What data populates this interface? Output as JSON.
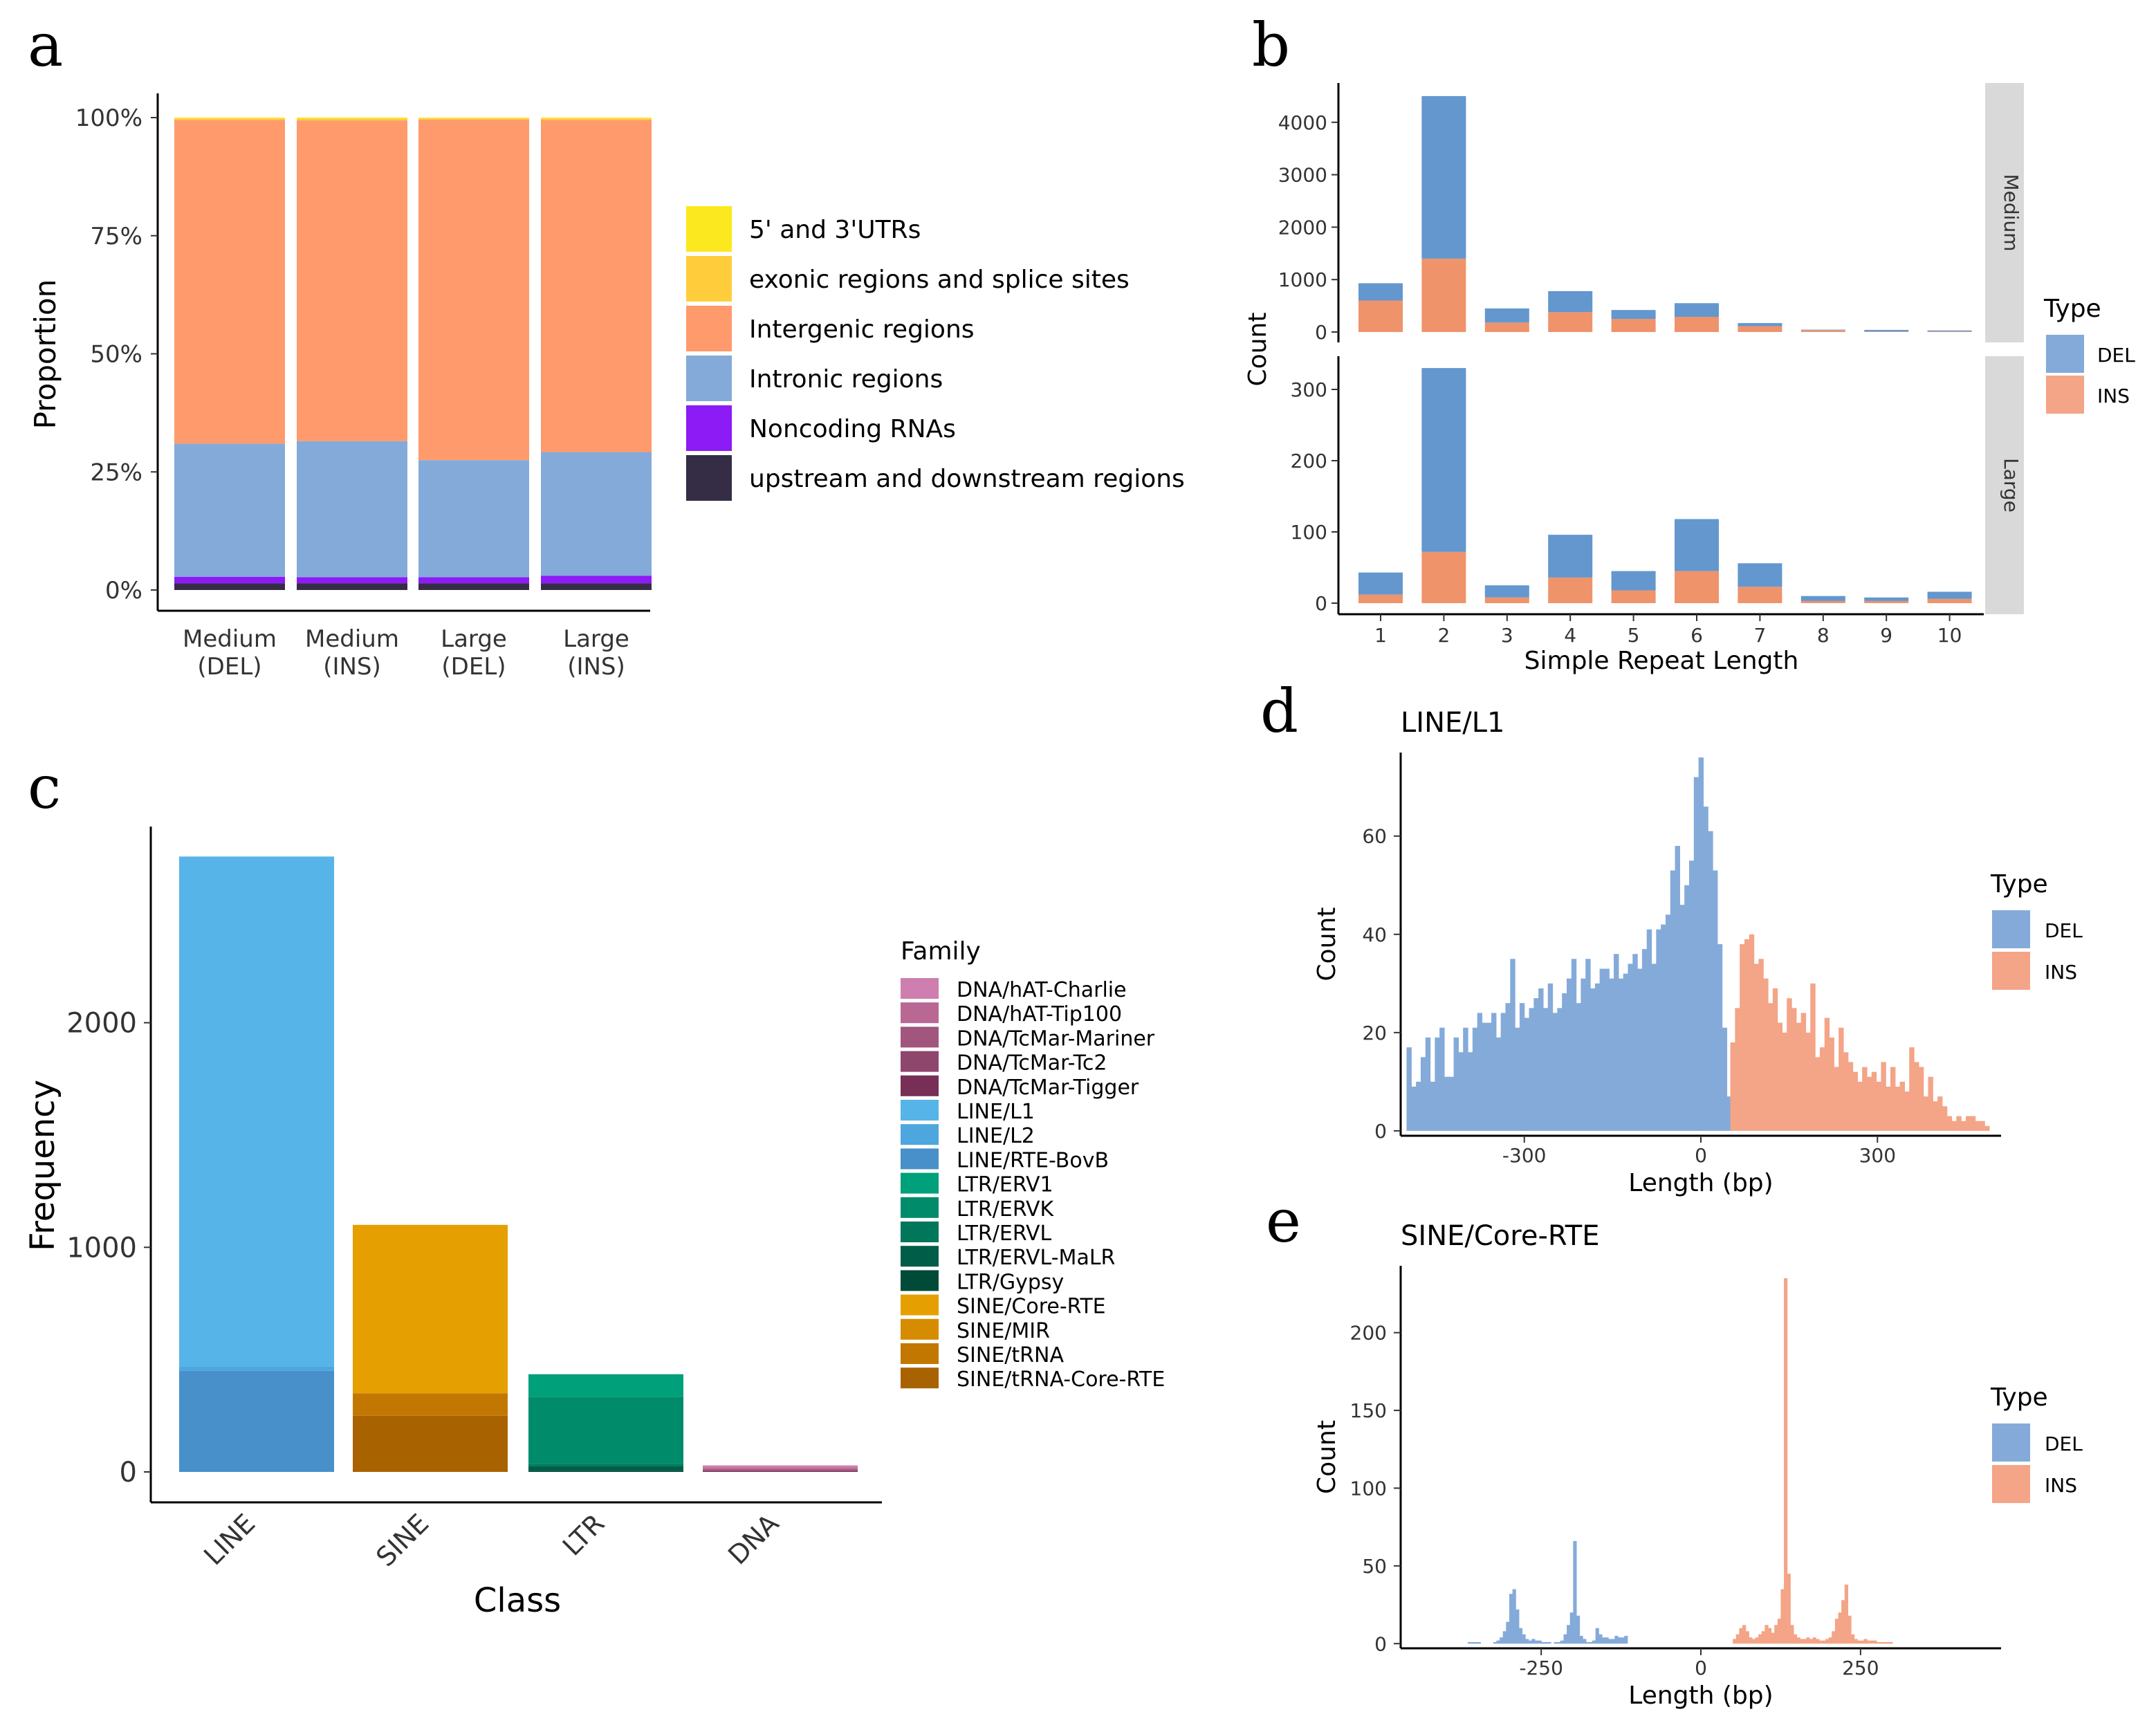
{
  "chart_data": [
    {
      "panel": "a",
      "type": "bar",
      "stacked": true,
      "categories": [
        "Medium\n(DEL)",
        "Medium\n(INS)",
        "Large\n(DEL)",
        "Large\n(INS)"
      ],
      "ylabel": "Proportion",
      "ylim": [
        0,
        1
      ],
      "yticks": [
        "0%",
        "25%",
        "50%",
        "75%",
        "100%"
      ],
      "stack_order_bottom_to_top": [
        "upstream and downstream regions",
        "Noncoding RNAs",
        "Intronic regions",
        "Intergenic regions",
        "exonic regions and splice sites",
        "5' and 3'UTRs"
      ],
      "series": [
        {
          "name": "5' and 3'UTRs",
          "color": "#FCE81E",
          "values": [
            0.002,
            0.002,
            0.002,
            0.002
          ]
        },
        {
          "name": "exonic regions and splice sites",
          "color": "#FFCD3C",
          "values": [
            0.003,
            0.004,
            0.002,
            0.003
          ]
        },
        {
          "name": "Intergenic regions",
          "color": "#FF9A6C",
          "values": [
            0.685,
            0.679,
            0.721,
            0.703
          ]
        },
        {
          "name": "Intronic regions",
          "color": "#84AAD9",
          "values": [
            0.282,
            0.288,
            0.248,
            0.262
          ]
        },
        {
          "name": "Noncoding RNAs",
          "color": "#8C1BF5",
          "values": [
            0.014,
            0.013,
            0.013,
            0.016
          ]
        },
        {
          "name": "upstream and downstream regions",
          "color": "#352D45",
          "values": [
            0.014,
            0.014,
            0.014,
            0.014
          ]
        }
      ]
    },
    {
      "panel": "b",
      "type": "bar",
      "stacked": true,
      "xlabel": "Simple Repeat Length",
      "ylabel": "Count",
      "legend_title": "Type",
      "categories": [
        "1",
        "2",
        "3",
        "4",
        "5",
        "6",
        "7",
        "8",
        "9",
        "10"
      ],
      "colors": {
        "DEL": "#6397CE",
        "INS": "#EF936B"
      },
      "legend_colors": {
        "DEL": "#84AAD9",
        "INS": "#F4A487"
      },
      "facets": [
        {
          "name": "Medium",
          "ylim": [
            0,
            4650
          ],
          "yticks": [
            "0",
            "1000",
            "2000",
            "3000",
            "4000"
          ],
          "series": [
            {
              "name": "INS",
              "values": [
                600,
                1400,
                180,
                380,
                250,
                290,
                110,
                35,
                10,
                10
              ]
            },
            {
              "name": "DEL",
              "values": [
                330,
                3100,
                270,
                400,
                170,
                260,
                60,
                10,
                30,
                20
              ]
            }
          ]
        },
        {
          "name": "Large",
          "ylim": [
            0,
            340
          ],
          "yticks": [
            "0",
            "100",
            "200",
            "300"
          ],
          "series": [
            {
              "name": "INS",
              "values": [
                12,
                72,
                8,
                36,
                18,
                45,
                23,
                3,
                3,
                6
              ]
            },
            {
              "name": "DEL",
              "values": [
                31,
                258,
                17,
                60,
                27,
                73,
                33,
                7,
                5,
                10
              ]
            }
          ]
        }
      ]
    },
    {
      "panel": "c",
      "type": "bar",
      "stacked": true,
      "xlabel": "Class",
      "ylabel": "Frequency",
      "legend_title": "Family",
      "categories": [
        "LINE",
        "SINE",
        "LTR",
        "DNA"
      ],
      "ylim": [
        0,
        2880
      ],
      "yticks": [
        "0",
        "1000",
        "2000"
      ],
      "families": [
        {
          "name": "DNA/hAT-Charlie",
          "color": "#CF7EB0"
        },
        {
          "name": "DNA/hAT-Tip100",
          "color": "#B96893"
        },
        {
          "name": "DNA/TcMar-Mariner",
          "color": "#A2557D"
        },
        {
          "name": "DNA/TcMar-Tc2",
          "color": "#8E466C"
        },
        {
          "name": "DNA/TcMar-Tigger",
          "color": "#782F56"
        },
        {
          "name": "LINE/L1",
          "color": "#56B4E9"
        },
        {
          "name": "LINE/L2",
          "color": "#4EA6DE"
        },
        {
          "name": "LINE/RTE-BovB",
          "color": "#4790C9"
        },
        {
          "name": "LTR/ERV1",
          "color": "#00A07A"
        },
        {
          "name": "LTR/ERVK",
          "color": "#008C6A"
        },
        {
          "name": "LTR/ERVL",
          "color": "#00765A"
        },
        {
          "name": "LTR/ERVL-MaLR",
          "color": "#005E48"
        },
        {
          "name": "LTR/Gypsy",
          "color": "#004A38"
        },
        {
          "name": "SINE/Core-RTE",
          "color": "#E69F00"
        },
        {
          "name": "SINE/MIR",
          "color": "#D68C00"
        },
        {
          "name": "SINE/tRNA",
          "color": "#C27800"
        },
        {
          "name": "SINE/tRNA-Core-RTE",
          "color": "#A86300"
        }
      ],
      "bars": [
        {
          "category": "LINE",
          "segments": [
            {
              "family": "LINE/RTE-BovB",
              "value": 450
            },
            {
              "family": "LINE/L2",
              "value": 20
            },
            {
              "family": "LINE/L1",
              "value": 2270
            }
          ]
        },
        {
          "category": "SINE",
          "segments": [
            {
              "family": "SINE/tRNA-Core-RTE",
              "value": 250
            },
            {
              "family": "SINE/tRNA",
              "value": 100
            },
            {
              "family": "SINE/Core-RTE",
              "value": 750
            }
          ]
        },
        {
          "category": "LTR",
          "segments": [
            {
              "family": "LTR/Gypsy",
              "value": 5
            },
            {
              "family": "LTR/ERVL-MaLR",
              "value": 20
            },
            {
              "family": "LTR/ERVL",
              "value": 10
            },
            {
              "family": "LTR/ERVK",
              "value": 300
            },
            {
              "family": "LTR/ERV1",
              "value": 100
            }
          ]
        },
        {
          "category": "DNA",
          "segments": [
            {
              "family": "DNA/TcMar-Tigger",
              "value": 4
            },
            {
              "family": "DNA/TcMar-Tc2",
              "value": 4
            },
            {
              "family": "DNA/TcMar-Mariner",
              "value": 5
            },
            {
              "family": "DNA/hAT-Tip100",
              "value": 8
            },
            {
              "family": "DNA/hAT-Charlie",
              "value": 8
            }
          ]
        }
      ]
    },
    {
      "panel": "d",
      "type": "bar",
      "subtype": "histogram",
      "title": "LINE/L1",
      "xlabel": "Length (bp)",
      "ylabel": "Count",
      "legend_title": "Type",
      "xlim": [
        -510,
        510
      ],
      "ylim": [
        -1,
        77
      ],
      "xticks": [
        "-300",
        "0",
        "300"
      ],
      "yticks": [
        "0",
        "20",
        "40",
        "60"
      ],
      "bin_width": 8,
      "colors": {
        "DEL": "#84AAD9",
        "INS": "#F4A487"
      },
      "series": [
        {
          "name": "DEL",
          "x_start": -500,
          "values": [
            17,
            9,
            10,
            15,
            19,
            10,
            19,
            21,
            11,
            11,
            19,
            16,
            21,
            16,
            21,
            24,
            22,
            22,
            24,
            19,
            24,
            26,
            35,
            21,
            26,
            23,
            25,
            27,
            29,
            25,
            30,
            24,
            25,
            28,
            31,
            35,
            26,
            31,
            35,
            29,
            30,
            33,
            33,
            31,
            36,
            31,
            32,
            34,
            36,
            33,
            37,
            41,
            34,
            41,
            42,
            44,
            53,
            58,
            46,
            50,
            55,
            72,
            76,
            66,
            61,
            53,
            38,
            21,
            7
          ]
        },
        {
          "name": "INS",
          "x_start": 50,
          "values": [
            18,
            25,
            38,
            39,
            40,
            34,
            35,
            31,
            26,
            29,
            22,
            20,
            27,
            25,
            22,
            24,
            20,
            30,
            15,
            17,
            23,
            19,
            13,
            21,
            16,
            14,
            12,
            10,
            13,
            11,
            12,
            10,
            14,
            9,
            13,
            9,
            10,
            8,
            17,
            14,
            13,
            7,
            11,
            6,
            7,
            5,
            3,
            2,
            3,
            2,
            3,
            3,
            2,
            2,
            1
          ]
        }
      ]
    },
    {
      "panel": "e",
      "type": "bar",
      "subtype": "histogram",
      "title": "SINE/Core-RTE",
      "xlabel": "Length (bp)",
      "ylabel": "Count",
      "legend_title": "Type",
      "xlim": [
        -470,
        470
      ],
      "ylim": [
        -3,
        243
      ],
      "xticks": [
        "-250",
        "0",
        "250"
      ],
      "yticks": [
        "0",
        "50",
        "100",
        "150",
        "200"
      ],
      "bin_width": 5,
      "colors": {
        "DEL": "#84AAD9",
        "INS": "#F4A487"
      },
      "series": [
        {
          "name": "DEL",
          "x_start": -365,
          "values": [
            1,
            1,
            1,
            1,
            0,
            0,
            0,
            0,
            1,
            2,
            4,
            8,
            14,
            32,
            35,
            22,
            10,
            6,
            3,
            2,
            3,
            2,
            2,
            1,
            1,
            1,
            0,
            1,
            1,
            2,
            6,
            12,
            20,
            66,
            18,
            5,
            3,
            1,
            1,
            2,
            10,
            6,
            4,
            4,
            3,
            3,
            5,
            4,
            4,
            5
          ]
        },
        {
          "name": "INS",
          "x_start": 50,
          "values": [
            3,
            6,
            10,
            12,
            8,
            4,
            3,
            4,
            6,
            8,
            12,
            10,
            7,
            12,
            16,
            35,
            235,
            45,
            12,
            6,
            4,
            3,
            3,
            4,
            3,
            4,
            3,
            2,
            2,
            3,
            4,
            8,
            16,
            20,
            28,
            38,
            18,
            6,
            3,
            2,
            2,
            3,
            2,
            2,
            2,
            1,
            1,
            1,
            1,
            1
          ]
        }
      ]
    }
  ],
  "panels": {
    "a": {
      "label": "a"
    },
    "b": {
      "label": "b"
    },
    "c": {
      "label": "c"
    },
    "d": {
      "label": "d"
    },
    "e": {
      "label": "e"
    }
  }
}
